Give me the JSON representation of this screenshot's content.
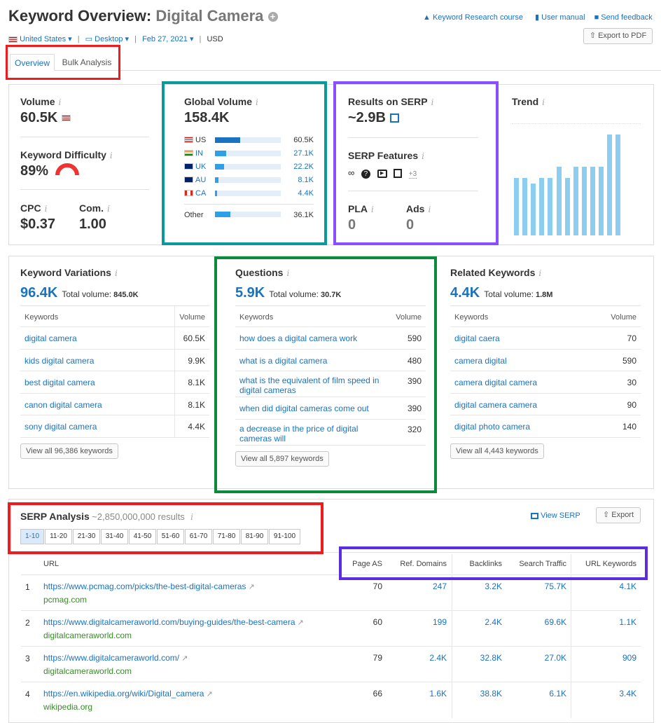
{
  "header": {
    "title_prefix": "Keyword Overview:",
    "title_keyword": "Digital Camera",
    "links": [
      "Keyword Research course",
      "User manual",
      "Send feedback"
    ],
    "export_pdf": "Export to PDF",
    "filters": {
      "country": "United States",
      "device": "Desktop",
      "date": "Feb 27, 2021",
      "currency": "USD"
    }
  },
  "tabs": [
    "Overview",
    "Bulk Analysis"
  ],
  "volume": {
    "label": "Volume",
    "value": "60.5K"
  },
  "difficulty": {
    "label": "Keyword Difficulty",
    "value": "89%",
    "level": 0.89
  },
  "cpc": {
    "label": "CPC",
    "value": "$0.37"
  },
  "com": {
    "label": "Com.",
    "value": "1.00"
  },
  "global_volume": {
    "label": "Global Volume",
    "value": "158.4K",
    "countries": [
      {
        "code": "US",
        "value": "60.5K",
        "share": 0.38
      },
      {
        "code": "IN",
        "value": "27.1K",
        "share": 0.17
      },
      {
        "code": "UK",
        "value": "22.2K",
        "share": 0.14
      },
      {
        "code": "AU",
        "value": "8.1K",
        "share": 0.05
      },
      {
        "code": "CA",
        "value": "4.4K",
        "share": 0.03
      }
    ],
    "other": {
      "label": "Other",
      "value": "36.1K",
      "share": 0.23
    }
  },
  "serp": {
    "results_label": "Results on SERP",
    "results_value": "~2.9B",
    "features_label": "SERP Features",
    "features_more": "+3",
    "pla_label": "PLA",
    "pla_value": "0",
    "ads_label": "Ads",
    "ads_value": "0"
  },
  "trend": {
    "label": "Trend",
    "values": [
      0.51,
      0.51,
      0.46,
      0.51,
      0.51,
      0.61,
      0.51,
      0.61,
      0.61,
      0.61,
      0.61,
      0.9,
      0.9
    ]
  },
  "keyword_variations": {
    "label": "Keyword Variations",
    "count": "96.4K",
    "total_label": "Total volume:",
    "total": "845.0K",
    "col_keywords": "Keywords",
    "col_volume": "Volume",
    "rows": [
      {
        "k": "digital camera",
        "v": "60.5K"
      },
      {
        "k": "kids digital camera",
        "v": "9.9K"
      },
      {
        "k": "best digital camera",
        "v": "8.1K"
      },
      {
        "k": "canon digital camera",
        "v": "8.1K"
      },
      {
        "k": "sony digital camera",
        "v": "4.4K"
      }
    ],
    "view_all": "View all 96,386 keywords"
  },
  "questions": {
    "label": "Questions",
    "count": "5.9K",
    "total_label": "Total volume:",
    "total": "30.7K",
    "col_keywords": "Keywords",
    "col_volume": "Volume",
    "rows": [
      {
        "k": "how does a digital camera work",
        "v": "590"
      },
      {
        "k": "what is a digital camera",
        "v": "480"
      },
      {
        "k": "what is the equivalent of film speed in digital cameras",
        "v": "390"
      },
      {
        "k": "when did digital cameras come out",
        "v": "390"
      },
      {
        "k": "a decrease in the price of digital cameras will",
        "v": "320"
      }
    ],
    "view_all": "View all 5,897 keywords"
  },
  "related": {
    "label": "Related Keywords",
    "count": "4.4K",
    "total_label": "Total volume:",
    "total": "1.8M",
    "col_keywords": "Keywords",
    "col_volume": "Volume",
    "rows": [
      {
        "k": "digital caera",
        "v": "70"
      },
      {
        "k": "camera digital",
        "v": "590"
      },
      {
        "k": "camera digital camera",
        "v": "30"
      },
      {
        "k": "digital camera camera",
        "v": "90"
      },
      {
        "k": "digital photo camera",
        "v": "140"
      }
    ],
    "view_all": "View all 4,443 keywords"
  },
  "serp_analysis": {
    "label": "SERP Analysis",
    "results": "~2,850,000,000 results",
    "view_serp": "View SERP",
    "export": "Export",
    "pages": [
      "1-10",
      "11-20",
      "21-30",
      "31-40",
      "41-50",
      "51-60",
      "61-70",
      "71-80",
      "81-90",
      "91-100"
    ],
    "columns": [
      "URL",
      "Page AS",
      "Ref. Domains",
      "Backlinks",
      "Search Traffic",
      "URL Keywords"
    ],
    "rows": [
      {
        "n": "1",
        "url": "https://www.pcmag.com/picks/the-best-digital-cameras",
        "domain": "pcmag.com",
        "as": "70",
        "ref": "247",
        "bl": "3.2K",
        "st": "75.7K",
        "uk": "4.1K"
      },
      {
        "n": "2",
        "url": "https://www.digitalcameraworld.com/buying-guides/the-best-camera",
        "domain": "digitalcameraworld.com",
        "as": "60",
        "ref": "199",
        "bl": "2.4K",
        "st": "69.6K",
        "uk": "1.1K"
      },
      {
        "n": "3",
        "url": "https://www.digitalcameraworld.com/",
        "domain": "digitalcameraworld.com",
        "as": "79",
        "ref": "2.4K",
        "bl": "32.8K",
        "st": "27.0K",
        "uk": "909"
      },
      {
        "n": "4",
        "url": "https://en.wikipedia.org/wiki/Digital_camera",
        "domain": "wikipedia.org",
        "as": "66",
        "ref": "1.6K",
        "bl": "38.8K",
        "st": "6.1K",
        "uk": "3.4K"
      }
    ]
  },
  "colors": {
    "red": "#ee1c1c",
    "teal": "#0b9a9a",
    "purple": "#8a4dff",
    "green": "#0a8a3a",
    "blue": "#1a73c0",
    "bar": "#8dcdf0"
  }
}
